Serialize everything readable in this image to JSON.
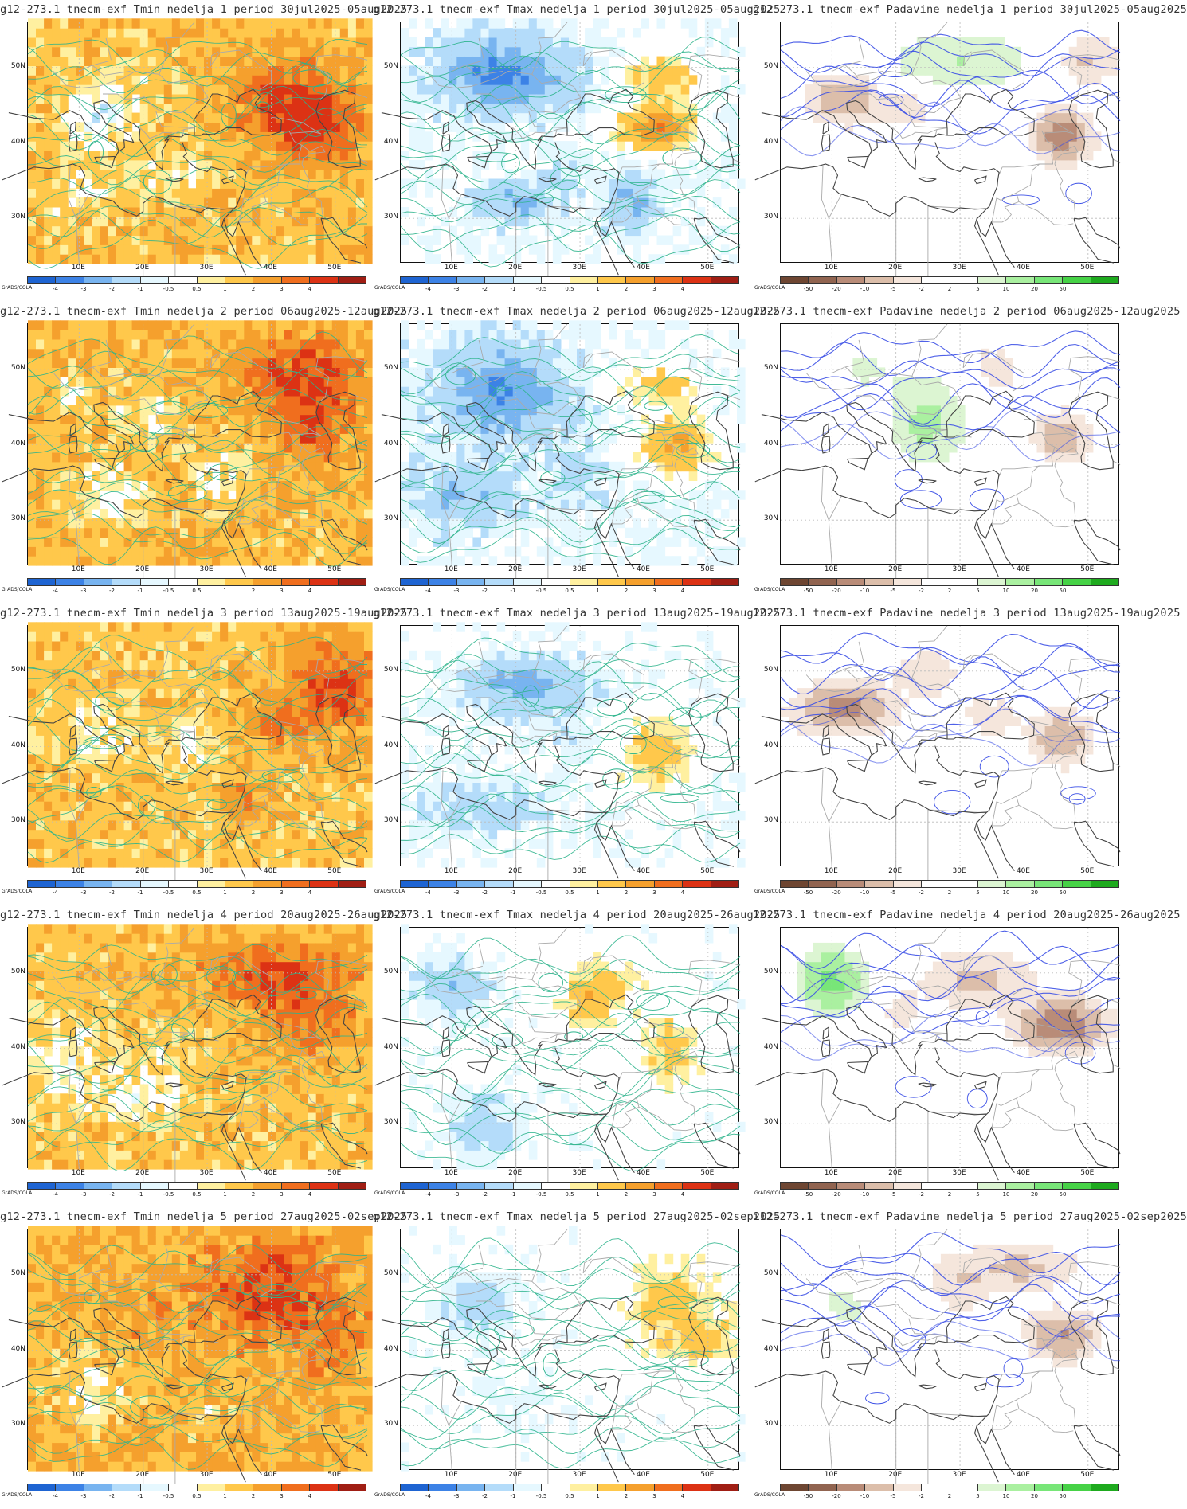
{
  "panels": [
    {
      "title": "g12-273.1 tnecm-exf Tmin nedelja 1 period 30jul2025-05aug2025",
      "var": "tmin",
      "week": 1
    },
    {
      "title": "g12-273.1 tnecm-exf Tmax nedelja 1 period 30jul2025-05aug2025",
      "var": "tmax",
      "week": 1
    },
    {
      "title": "g12-273.1 tnecm-exf Padavine nedelja 1 period 30jul2025-05aug2025",
      "var": "pad",
      "week": 1
    },
    {
      "title": "g12-273.1 tnecm-exf Tmin nedelja 2 period 06aug2025-12aug2025",
      "var": "tmin",
      "week": 2
    },
    {
      "title": "g12-273.1 tnecm-exf Tmax nedelja 2 period 06aug2025-12aug2025",
      "var": "tmax",
      "week": 2
    },
    {
      "title": "12-273.1 tnecm-exf Padavine nedelja 2 period 06aug2025-12aug2025",
      "var": "pad",
      "week": 2
    },
    {
      "title": "g12-273.1 tnecm-exf Tmin nedelja 3 period 13aug2025-19aug2025",
      "var": "tmin",
      "week": 3
    },
    {
      "title": "g12-273.1 tnecm-exf Tmax nedelja 3 period 13aug2025-19aug2025",
      "var": "tmax",
      "week": 3
    },
    {
      "title": "12-273.1 tnecm-exf Padavine nedelja 3 period 13aug2025-19aug2025",
      "var": "pad",
      "week": 3
    },
    {
      "title": "g12-273.1 tnecm-exf Tmin nedelja 4 period 20aug2025-26aug2025",
      "var": "tmin",
      "week": 4
    },
    {
      "title": "g12-273.1 tnecm-exf Tmax nedelja 4 period 20aug2025-26aug2025",
      "var": "tmax",
      "week": 4
    },
    {
      "title": "12-273.1 tnecm-exf Padavine nedelja 4 period 20aug2025-26aug2025",
      "var": "pad",
      "week": 4
    },
    {
      "title": "g12-273.1 tnecm-exf Tmin nedelja 5 period 27aug2025-02sep2025",
      "var": "tmin",
      "week": 5
    },
    {
      "title": "g12-273.1 tnecm-exf Tmax nedelja 5 period 27aug2025-02sep2025",
      "var": "tmax",
      "week": 5
    },
    {
      "title": "i12-273.1 tnecm-exf Padavine nedelja 5 period 27aug2025-02sep2025",
      "var": "pad",
      "week": 5
    }
  ],
  "lat_labels": [
    "50N",
    "40N",
    "30N"
  ],
  "lon_labels": [
    "10E",
    "20E",
    "30E",
    "40E",
    "50E"
  ],
  "grads_label": "GrADS/COLA",
  "colorbars": {
    "temp": {
      "colors": [
        "#1e64d2",
        "#3c82e6",
        "#78b4f0",
        "#b4dcfa",
        "#e6f8ff",
        "#ffffff",
        "#fff0a0",
        "#ffc84b",
        "#f5a02d",
        "#f06e1e",
        "#dc3214",
        "#a01e14"
      ],
      "ticks": [
        "-4",
        "-3",
        "-2",
        "-1",
        "-0.5",
        "0.5",
        "1",
        "2",
        "3",
        "4"
      ]
    },
    "precip": {
      "colors": [
        "#6e4632",
        "#916450",
        "#b98c78",
        "#dcbeaa",
        "#f5e6dc",
        "#ffffff",
        "#ffffff",
        "#dcf5d2",
        "#aaf0a0",
        "#78e678",
        "#46d246",
        "#1eaa1e"
      ],
      "ticks": [
        "-50",
        "-20",
        "-10",
        "-5",
        "-2",
        "2",
        "5",
        "10",
        "20",
        "50"
      ]
    }
  },
  "colors": {
    "temp_contour": "#2db48c",
    "precip_contour": "#3c50e6",
    "coast": "#444444",
    "border": "#aaaaaa",
    "grid": "#bbbbbb"
  }
}
